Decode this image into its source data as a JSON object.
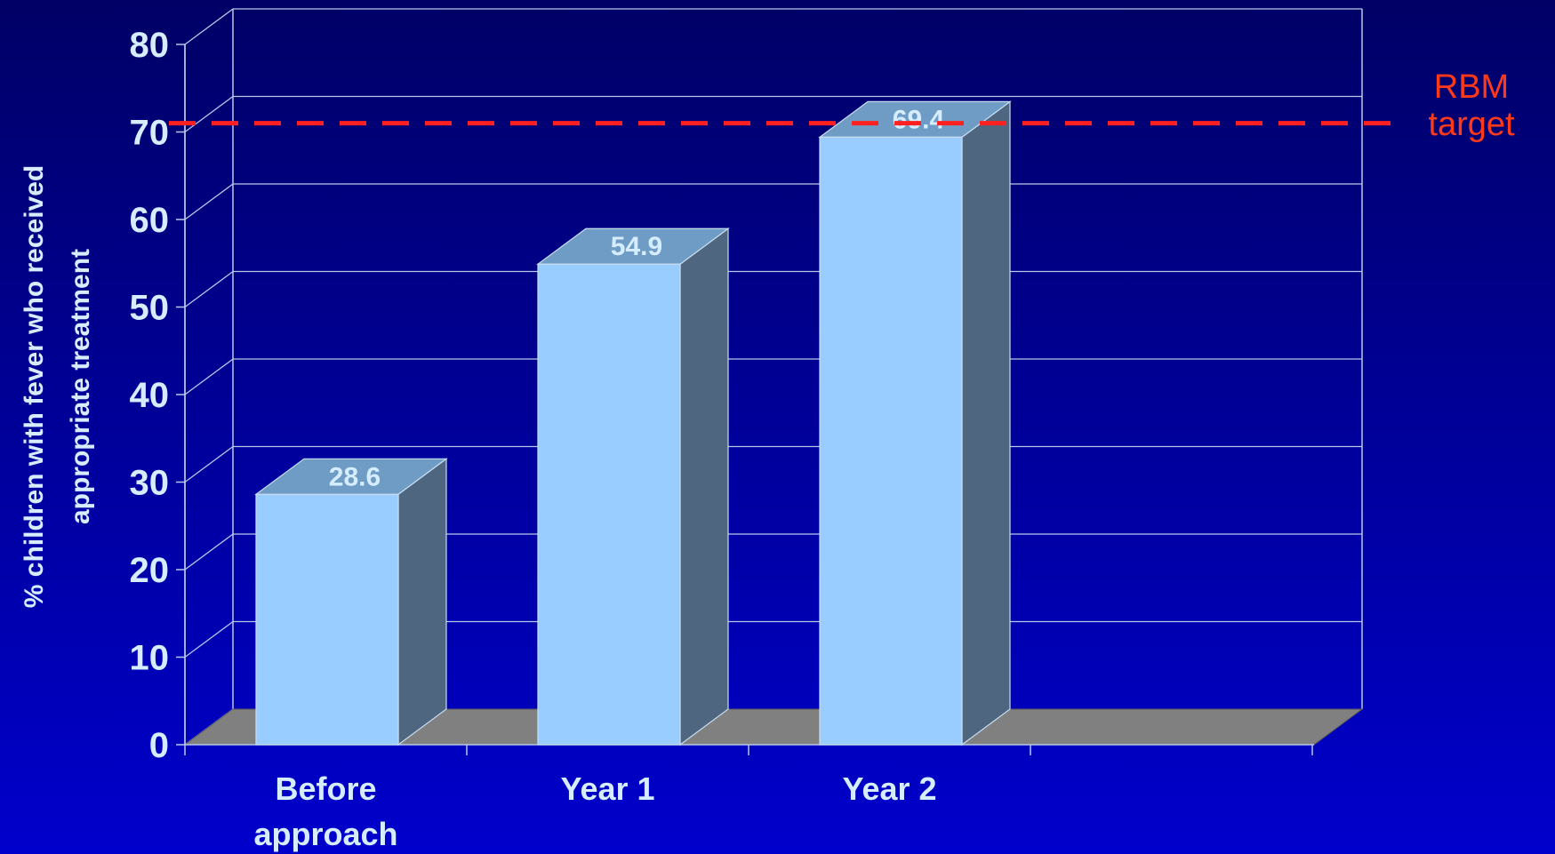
{
  "chart_data": {
    "type": "bar",
    "categories": [
      [
        "Before",
        "approach"
      ],
      [
        "Year 1"
      ],
      [
        "Year 2"
      ]
    ],
    "values": [
      28.6,
      54.9,
      69.4
    ],
    "data_labels": [
      "28.6",
      "54.9",
      "69.4"
    ],
    "ylabel": [
      "% children with fever who received",
      "appropriate treatment"
    ],
    "ylim": [
      0,
      80
    ],
    "yticks": [
      0,
      10,
      20,
      30,
      40,
      50,
      60,
      70,
      80
    ],
    "grid": true,
    "three_d": true,
    "reference_line": {
      "value": 71,
      "label": [
        "RBM",
        "target"
      ],
      "color": "#ff2020",
      "style": "dashed"
    },
    "colors": {
      "bar_front": "#99ccff",
      "bar_top": "#6f9cc4",
      "bar_side": "#4f6680",
      "floor": "#808080",
      "text": "#d6ecff",
      "label": "#ff3a1a",
      "grid": "#b8c8e8"
    }
  }
}
